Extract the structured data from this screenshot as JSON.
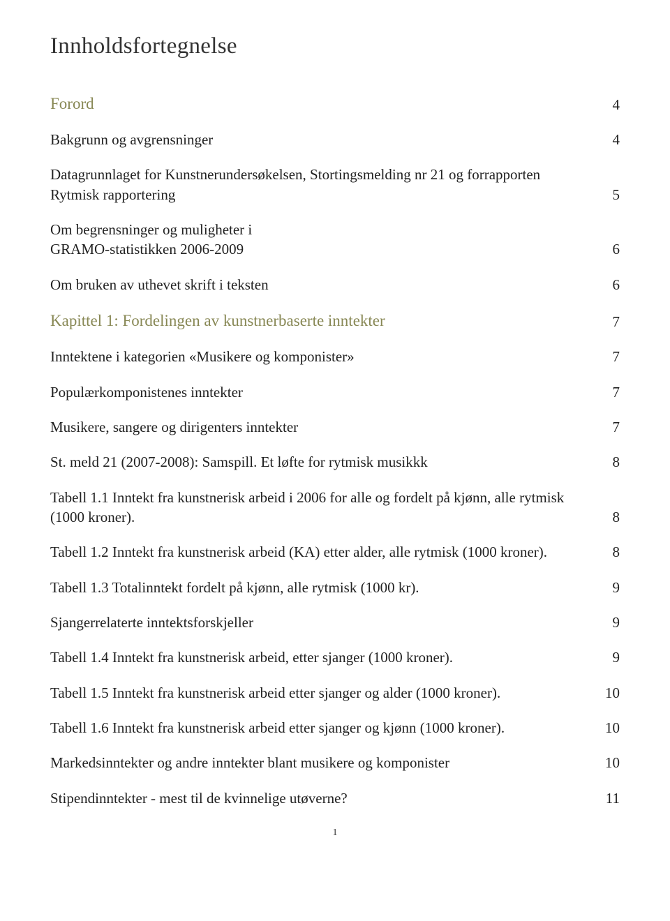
{
  "title": "Innholdsfortegnelse",
  "footer_page": "1",
  "entries": [
    {
      "type": "sec",
      "label": "Forord",
      "page": "4"
    },
    {
      "type": "body",
      "label": "Bakgrunn og avgrensninger",
      "page": "4"
    },
    {
      "type": "multi",
      "lines": [
        "Datagrunnlaget for Kunstnerundersøkelsen, Stortingsmelding nr 21 og forrapporten"
      ],
      "last": "Rytmisk rapportering",
      "page": "5"
    },
    {
      "type": "multi",
      "lines": [
        "Om begrensninger og muligheter i"
      ],
      "last": "GRAMO-statistikken 2006-2009",
      "page": "6"
    },
    {
      "type": "body",
      "label": "Om bruken av uthevet skrift i teksten",
      "page": "6"
    },
    {
      "type": "sec",
      "label": "Kapittel 1: Fordelingen av kunstnerbaserte inntekter",
      "page": "7"
    },
    {
      "type": "body",
      "label": "Inntektene i kategorien «Musikere og komponister»",
      "page": "7"
    },
    {
      "type": "body",
      "label": "Populærkomponistenes inntekter",
      "page": "7"
    },
    {
      "type": "body",
      "label": "Musikere, sangere og dirigenters inntekter",
      "page": "7"
    },
    {
      "type": "body",
      "label": "St. meld 21 (2007-2008): Samspill. Et løfte for rytmisk musikkk",
      "page": "8"
    },
    {
      "type": "multi",
      "lines": [
        "Tabell 1.1 Inntekt fra kunstnerisk arbeid i 2006 for alle og fordelt på kjønn, alle rytmisk"
      ],
      "last": "(1000 kroner).",
      "page": "8"
    },
    {
      "type": "body",
      "label": "Tabell 1.2 Inntekt fra kunstnerisk arbeid (KA) etter alder, alle rytmisk (1000 kroner).",
      "page": "8"
    },
    {
      "type": "body",
      "label": "Tabell 1.3 Totalinntekt fordelt på kjønn, alle rytmisk (1000 kr).",
      "page": "9"
    },
    {
      "type": "body",
      "label": "Sjangerrelaterte inntektsforskjeller",
      "page": "9"
    },
    {
      "type": "body",
      "label": "Tabell 1.4 Inntekt fra kunstnerisk arbeid, etter sjanger (1000 kroner).",
      "page": "9"
    },
    {
      "type": "body",
      "label": "Tabell 1.5 Inntekt fra kunstnerisk arbeid etter sjanger og alder (1000 kroner).",
      "page": "10"
    },
    {
      "type": "body",
      "label": "Tabell 1.6 Inntekt fra kunstnerisk arbeid etter sjanger og kjønn (1000 kroner).",
      "page": "10"
    },
    {
      "type": "body",
      "label": "Markedsinntekter og andre inntekter blant musikere og komponister",
      "page": "10"
    },
    {
      "type": "body",
      "label": "Stipendinntekter - mest til de kvinnelige utøverne?",
      "page": "11"
    }
  ]
}
